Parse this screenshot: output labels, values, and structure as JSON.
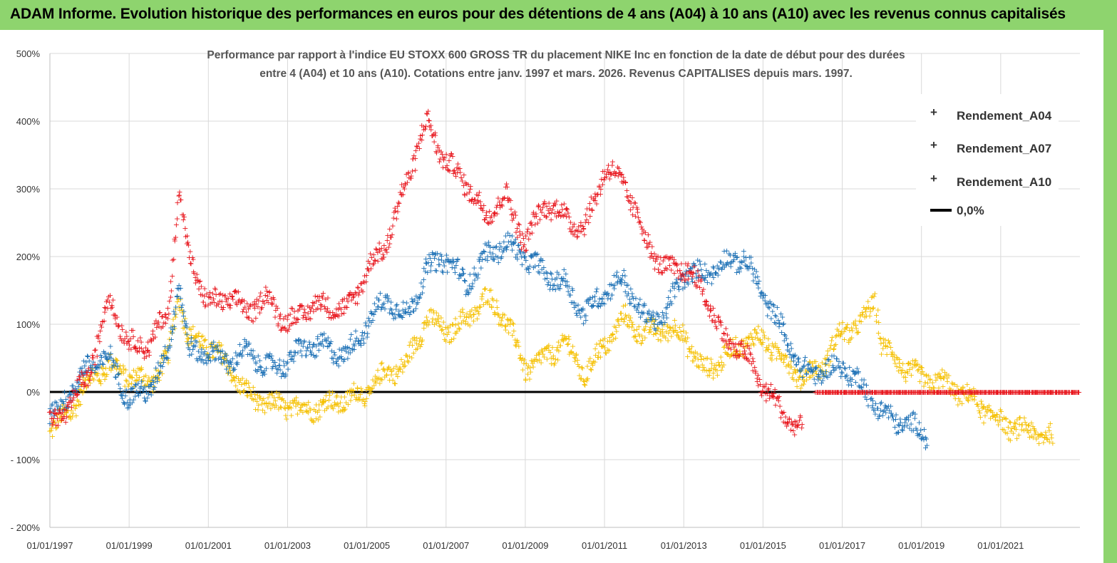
{
  "banner": {
    "title": "ADAM Informe. Evolution historique des performances en euros pour des détentions de 4 ans (A04) à 10 ans (A10) avec les revenus connus capitalisés"
  },
  "colors": {
    "banner_bg": "#8ed46e",
    "A04": "#f5c000",
    "A07": "#1a6fb5",
    "A10": "#e8151c",
    "zero_line": "#000000"
  },
  "chart_data": {
    "type": "scatter",
    "title_line1": "Performance par rapport à l'indice EU STOXX 600 GROSS TR  du placement NIKE Inc en fonction de la date de début pour des durées",
    "title_line2": "entre 4 (A04) et 10 ans (A10). Cotations entre janv. 1997 et mars. 2026. Revenus CAPITALISES depuis mars. 1997.",
    "xlabel": "",
    "ylabel": "",
    "x_ticks": [
      "01/01/1997",
      "01/01/1999",
      "01/01/2001",
      "01/01/2003",
      "01/01/2005",
      "01/01/2007",
      "01/01/2009",
      "01/01/2011",
      "01/01/2013",
      "01/01/2015",
      "01/01/2017",
      "01/01/2019",
      "01/01/2021"
    ],
    "xlim": [
      "1997-01-01",
      "2023-01-01"
    ],
    "y_ticks": [
      "500%",
      "400%",
      "300%",
      "200%",
      "100%",
      "0%",
      "- 100%",
      "- 200%"
    ],
    "ylim": [
      -200,
      500
    ],
    "grid": "horizontal and vertical",
    "legend_position": "top-right",
    "legend": [
      "Rendement_A04",
      "Rendement_A07",
      "Rendement_A10",
      "0,0%"
    ],
    "series": [
      {
        "name": "Rendement_A04",
        "x": [
          "1997-01",
          "1997-07",
          "1998-01",
          "1998-07",
          "1999-01",
          "1999-07",
          "2000-01",
          "2000-04",
          "2000-07",
          "2001-01",
          "2001-07",
          "2002-01",
          "2002-07",
          "2003-01",
          "2003-07",
          "2004-01",
          "2004-07",
          "2005-01",
          "2005-07",
          "2006-01",
          "2006-07",
          "2007-01",
          "2007-07",
          "2008-01",
          "2008-07",
          "2009-01",
          "2009-07",
          "2010-01",
          "2010-07",
          "2011-01",
          "2011-07",
          "2012-01",
          "2012-07",
          "2013-01",
          "2013-07",
          "2014-01",
          "2014-07",
          "2015-01",
          "2015-07",
          "2016-01",
          "2016-07",
          "2017-01",
          "2017-07",
          "2017-11",
          "2018-01",
          "2018-07",
          "2019-01",
          "2019-07",
          "2020-01",
          "2020-07",
          "2021-01",
          "2021-07",
          "2022-01",
          "2022-05"
        ],
        "y": [
          -55,
          -30,
          20,
          40,
          25,
          15,
          50,
          150,
          80,
          70,
          40,
          -5,
          -18,
          -20,
          -25,
          -18,
          -10,
          0,
          30,
          40,
          110,
          90,
          105,
          140,
          110,
          35,
          50,
          75,
          25,
          70,
          110,
          85,
          95,
          85,
          30,
          50,
          75,
          80,
          50,
          20,
          40,
          90,
          100,
          140,
          70,
          40,
          20,
          15,
          0,
          -20,
          -45,
          -55,
          -60,
          -70
        ]
      },
      {
        "name": "Rendement_A07",
        "x": [
          "1997-01",
          "1997-07",
          "1998-01",
          "1998-07",
          "1999-01",
          "1999-07",
          "2000-01",
          "2000-04",
          "2000-07",
          "2001-01",
          "2001-07",
          "2002-01",
          "2002-07",
          "2003-01",
          "2003-07",
          "2004-01",
          "2004-07",
          "2005-01",
          "2005-07",
          "2006-01",
          "2006-07",
          "2007-01",
          "2007-07",
          "2008-01",
          "2008-07",
          "2009-01",
          "2009-07",
          "2010-01",
          "2010-07",
          "2011-01",
          "2011-07",
          "2012-01",
          "2012-07",
          "2013-01",
          "2013-07",
          "2014-01",
          "2014-07",
          "2015-01",
          "2015-07",
          "2016-01",
          "2016-07",
          "2017-01",
          "2017-07",
          "2018-01",
          "2018-07",
          "2019-01",
          "2019-03"
        ],
        "y": [
          -40,
          0,
          40,
          50,
          -10,
          5,
          60,
          170,
          60,
          60,
          45,
          60,
          35,
          45,
          70,
          65,
          55,
          100,
          140,
          110,
          180,
          200,
          160,
          200,
          220,
          200,
          175,
          160,
          115,
          150,
          165,
          110,
          110,
          175,
          175,
          190,
          200,
          145,
          90,
          30,
          30,
          40,
          10,
          -30,
          -45,
          -55,
          -65
        ]
      },
      {
        "name": "Rendement_A10",
        "x": [
          "1997-01",
          "1997-07",
          "1998-01",
          "1998-07",
          "1999-01",
          "1999-07",
          "2000-01",
          "2000-04",
          "2000-07",
          "2001-01",
          "2001-07",
          "2002-01",
          "2002-07",
          "2003-01",
          "2003-07",
          "2004-01",
          "2004-07",
          "2005-01",
          "2005-07",
          "2006-01",
          "2006-07",
          "2007-01",
          "2007-07",
          "2008-01",
          "2008-07",
          "2009-01",
          "2009-07",
          "2010-01",
          "2010-07",
          "2011-01",
          "2011-07",
          "2012-01",
          "2012-07",
          "2013-01",
          "2013-07",
          "2014-01",
          "2014-07",
          "2015-01",
          "2015-07",
          "2016-01"
        ],
        "y": [
          -50,
          -20,
          30,
          140,
          70,
          70,
          120,
          300,
          200,
          130,
          140,
          120,
          140,
          100,
          125,
          130,
          120,
          180,
          220,
          310,
          400,
          340,
          310,
          260,
          290,
          220,
          280,
          260,
          240,
          330,
          310,
          230,
          180,
          185,
          150,
          80,
          60,
          10,
          -30,
          -60
        ]
      },
      {
        "name": "Rendement_A10_zero",
        "x": [
          "2016-05",
          "2023-01"
        ],
        "y": [
          0,
          0
        ]
      }
    ]
  }
}
